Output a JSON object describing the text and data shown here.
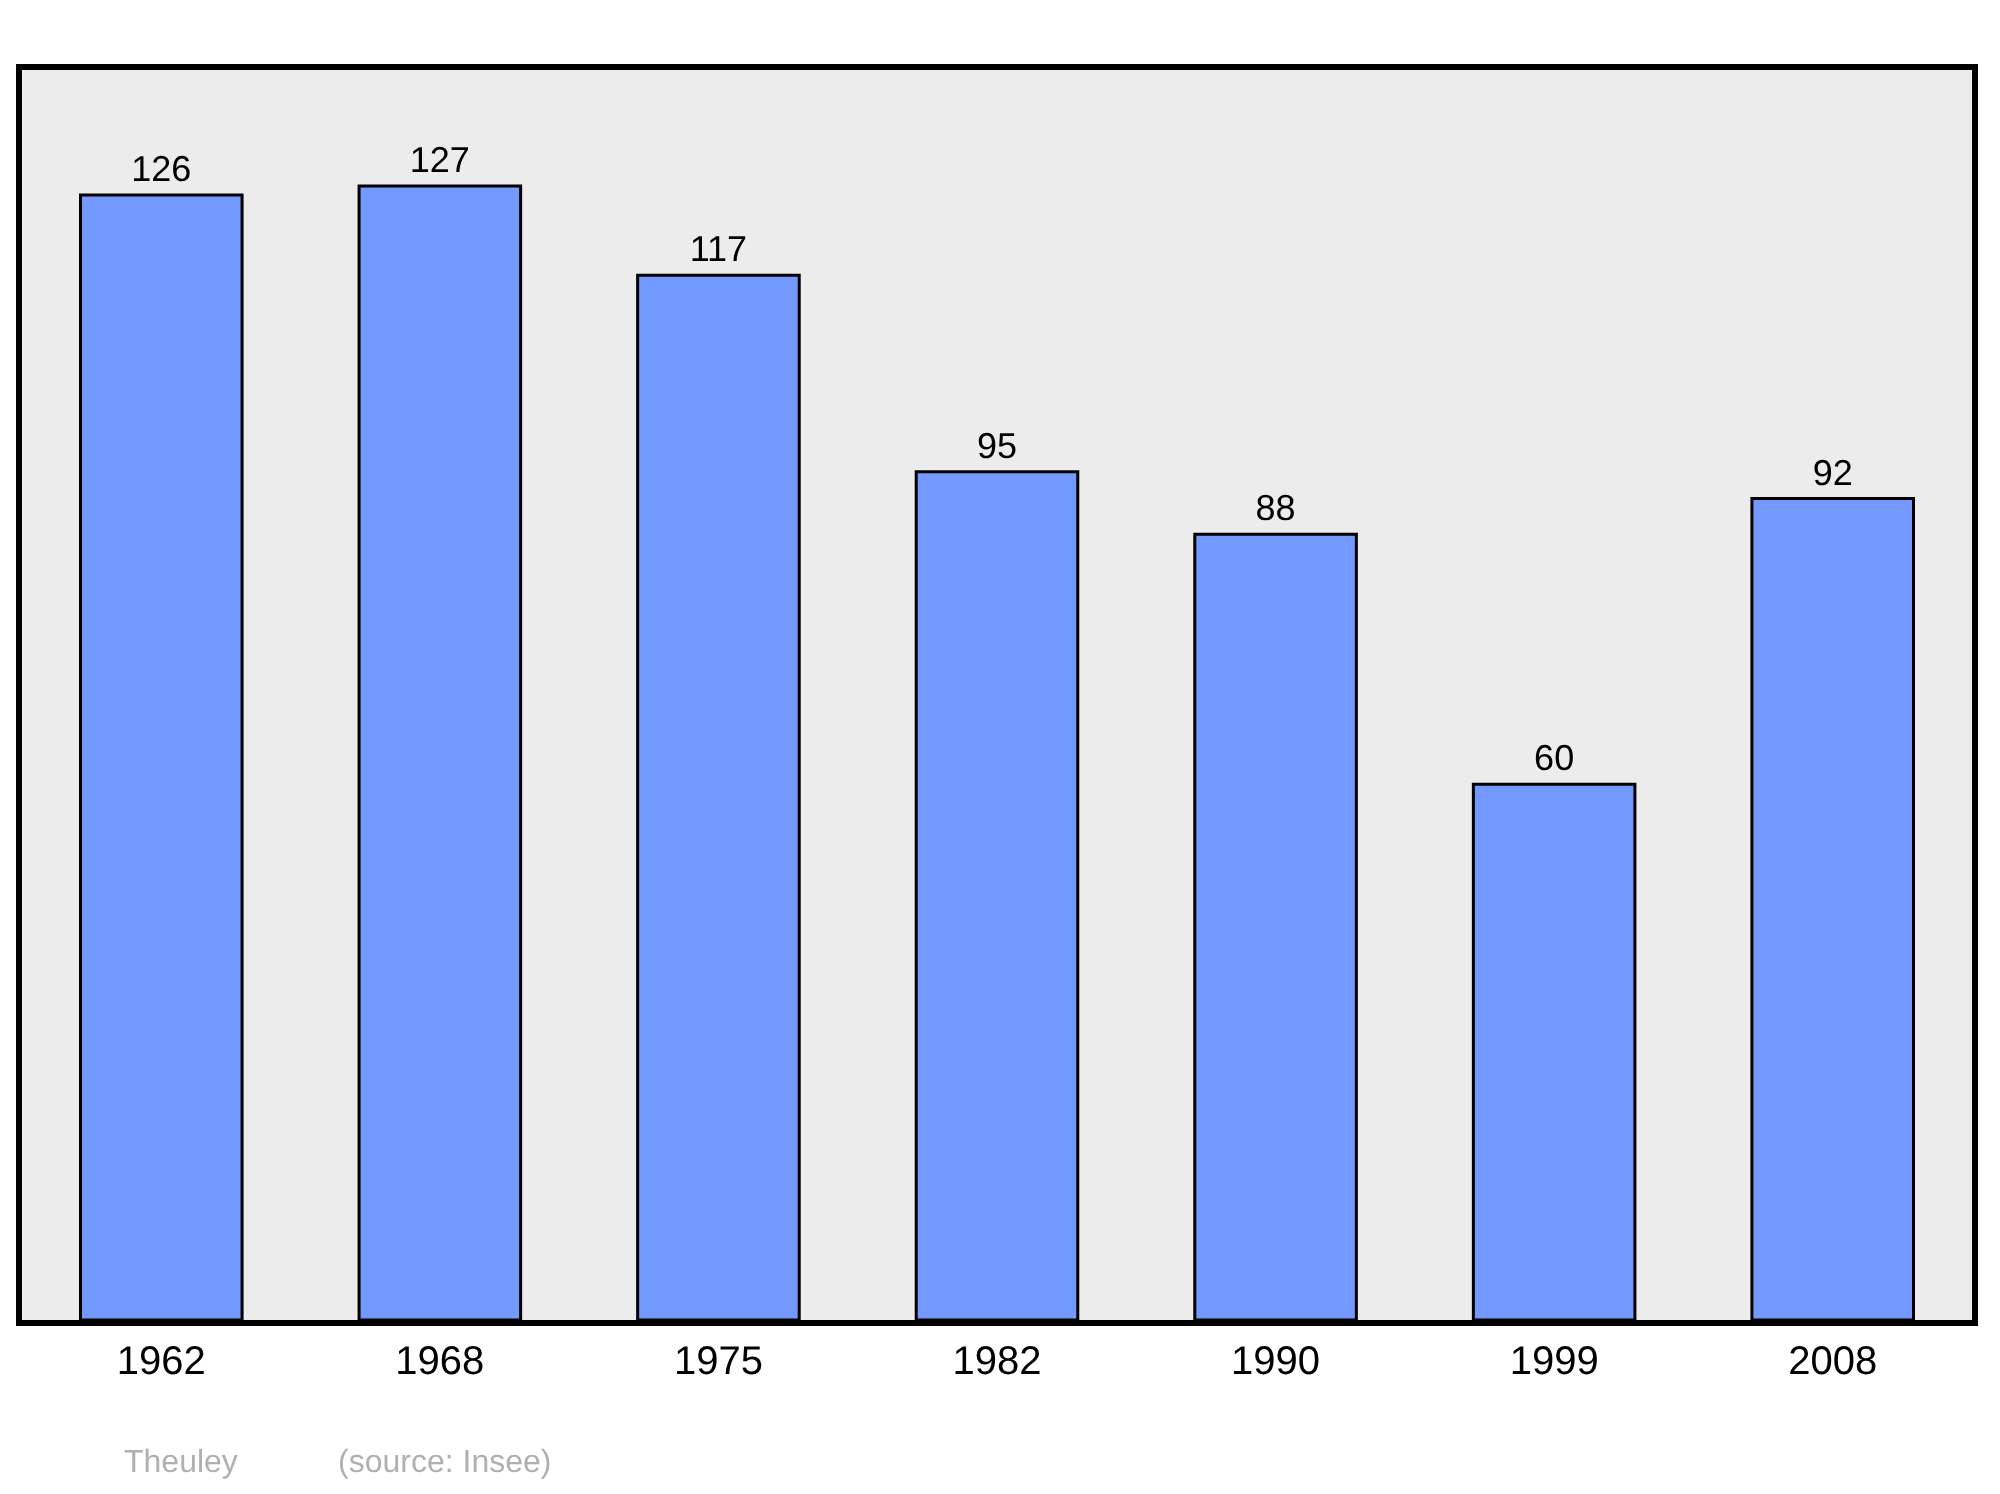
{
  "chart_data": {
    "type": "bar",
    "categories": [
      "1962",
      "1968",
      "1975",
      "1982",
      "1990",
      "1999",
      "2008"
    ],
    "values": [
      126,
      127,
      117,
      95,
      88,
      60,
      92
    ],
    "color": "#7399ff",
    "ylim": [
      0,
      140
    ],
    "data_labels": true,
    "tick_labels": "x",
    "grid": false,
    "legend": false,
    "annotations": [
      "Theuley",
      "(source: Insee)"
    ]
  }
}
